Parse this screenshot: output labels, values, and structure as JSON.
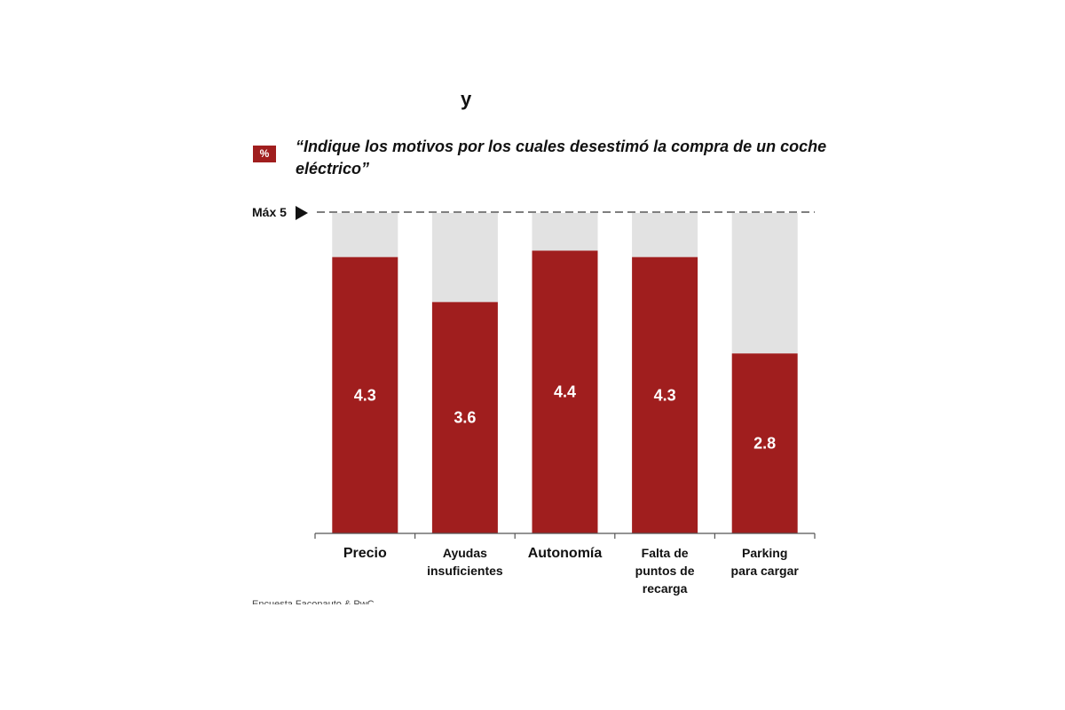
{
  "header": {
    "top_fragment": "y",
    "unit_badge": "%",
    "question": "“Indique los motivos por los cuales desestimó la compra de un coche eléctrico”"
  },
  "max_line_label": "Máx 5",
  "source": "Encuesta Faconauto & PwC",
  "colors": {
    "bar": "#a01e1e",
    "remainder": "#e2e2e2",
    "axis": "#555555"
  },
  "chart_data": {
    "type": "bar",
    "title": "",
    "categories": [
      [
        "Precio"
      ],
      [
        "Ayudas",
        "insuficientes"
      ],
      [
        "Autonomía"
      ],
      [
        "Falta de",
        "puntos de",
        "recarga"
      ],
      [
        "Parking",
        "para cargar"
      ]
    ],
    "values": [
      4.3,
      3.6,
      4.4,
      4.3,
      2.8
    ],
    "value_labels": [
      "4.3",
      "3.6",
      "4.4",
      "4.3",
      "2.8"
    ],
    "ylim": [
      0,
      5
    ],
    "max_reference": 5,
    "xlabel": "",
    "ylabel": "",
    "grid": false,
    "legend": "none"
  }
}
